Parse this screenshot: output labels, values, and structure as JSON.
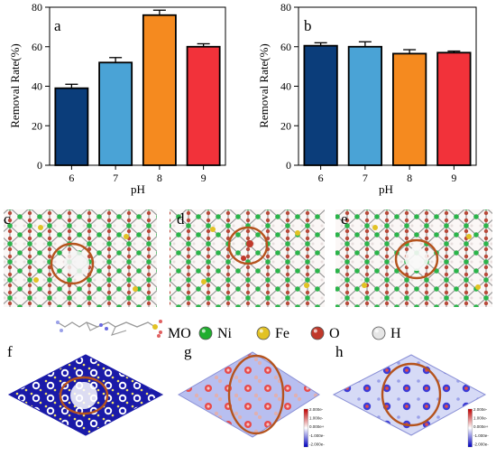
{
  "chart_data": [
    {
      "type": "bar",
      "panel": "a",
      "categories": [
        "6",
        "7",
        "8",
        "9"
      ],
      "values": [
        39,
        52,
        76,
        60
      ],
      "errors": [
        2,
        2.5,
        2.5,
        1.5
      ],
      "colors": [
        "#0b3d7a",
        "#4aa3d6",
        "#f58a1f",
        "#f2323a"
      ],
      "xlabel": "pH",
      "ylabel": "Removal Rate(%)",
      "ylim": [
        0,
        80
      ],
      "yticks": [
        "0",
        "20",
        "40",
        "60",
        "80"
      ]
    },
    {
      "type": "bar",
      "panel": "b",
      "categories": [
        "6",
        "7",
        "8",
        "9"
      ],
      "values": [
        60.5,
        60,
        56.5,
        57
      ],
      "errors": [
        1.5,
        2.5,
        2,
        0.8
      ],
      "colors": [
        "#0b3d7a",
        "#4aa3d6",
        "#f58a1f",
        "#f2323a"
      ],
      "xlabel": "pH",
      "ylabel": "Removal Rate(%)",
      "ylim": [
        0,
        80
      ],
      "yticks": [
        "0",
        "20",
        "40",
        "60",
        "80"
      ]
    }
  ],
  "panels": {
    "c": "c",
    "d": "d",
    "e": "e",
    "f": "f",
    "g": "g",
    "h": "h"
  },
  "legend": {
    "mo": "MO",
    "items": [
      {
        "label": "Ni",
        "color": "#1fae2e"
      },
      {
        "label": "Fe",
        "color": "#e2c224"
      },
      {
        "label": "O",
        "color": "#c0392b"
      },
      {
        "label": "H",
        "color": "#e6e6e6"
      }
    ]
  },
  "colorbar_g": [
    "2.000e-",
    "1.000e-",
    "0.000e+",
    "-1.000e-",
    "-2.000e-"
  ],
  "colorbar_h": [
    "2.000e-",
    "1.000e-",
    "0.000e+",
    "-1.000e-",
    "-2.000e-"
  ]
}
